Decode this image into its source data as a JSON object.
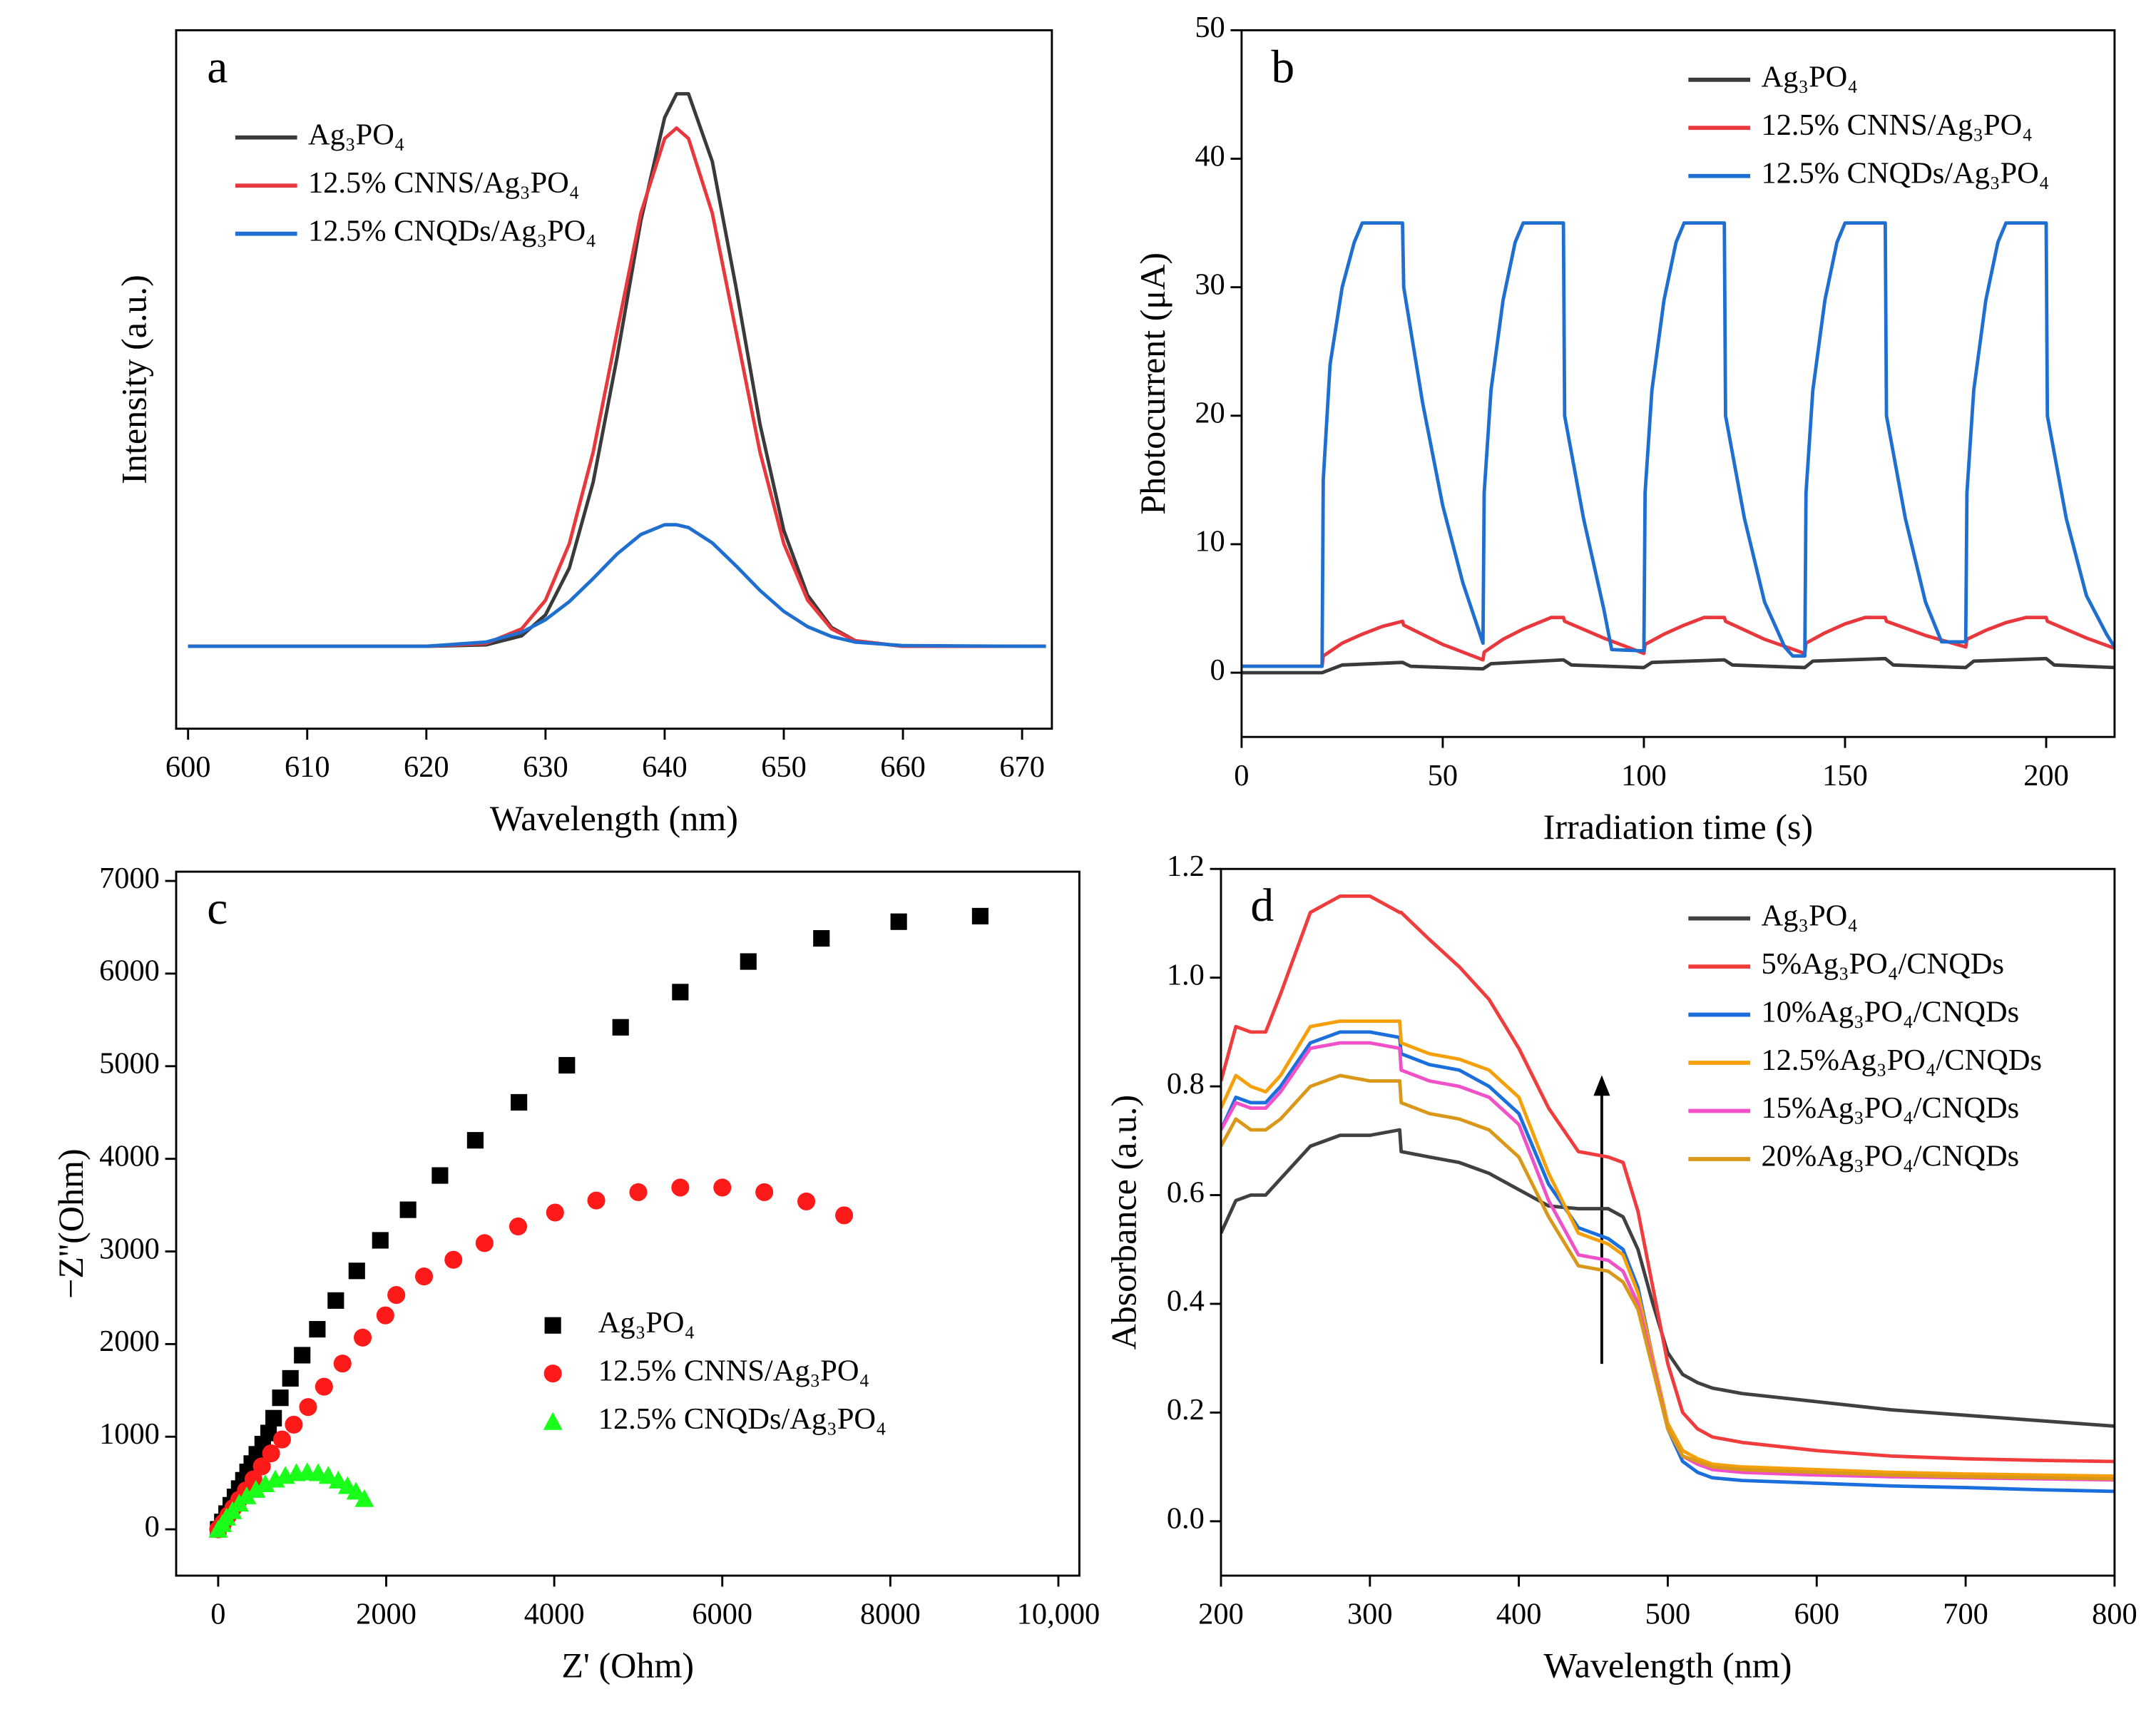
{
  "chart_data": [
    {
      "type": "line",
      "label": "a",
      "xlabel": "Wavelength (nm)",
      "ylabel": "Intensity (a.u.)",
      "xlim": [
        599,
        672.5
      ],
      "xticks": [
        600,
        610,
        620,
        630,
        640,
        650,
        660,
        670
      ],
      "ylim": [
        0,
        1
      ],
      "legend": "upper left",
      "x": [
        600,
        610,
        620,
        625,
        628,
        630,
        632,
        634,
        636,
        638,
        640,
        641,
        642,
        644,
        646,
        648,
        650,
        652,
        654,
        656,
        660,
        670,
        672
      ],
      "series": [
        {
          "name": "Ag₃PO₄",
          "color": "#3a3a3a",
          "values": [
            0.118,
            0.118,
            0.118,
            0.12,
            0.133,
            0.163,
            0.23,
            0.353,
            0.531,
            0.727,
            0.875,
            0.909,
            0.909,
            0.812,
            0.631,
            0.436,
            0.284,
            0.191,
            0.145,
            0.126,
            0.118,
            0.118,
            0.118
          ]
        },
        {
          "name": "12.5% CNNS/Ag₃PO₄",
          "color": "#e8383d",
          "values": [
            0.118,
            0.118,
            0.118,
            0.122,
            0.143,
            0.184,
            0.265,
            0.396,
            0.568,
            0.738,
            0.845,
            0.86,
            0.845,
            0.738,
            0.568,
            0.396,
            0.265,
            0.184,
            0.143,
            0.126,
            0.118,
            0.118,
            0.118
          ]
        },
        {
          "name": "12.5% CNQDs/Ag₃PO₄",
          "color": "#1f6fd0",
          "values": [
            0.118,
            0.118,
            0.118,
            0.124,
            0.138,
            0.156,
            0.182,
            0.215,
            0.25,
            0.278,
            0.292,
            0.292,
            0.288,
            0.266,
            0.233,
            0.198,
            0.168,
            0.146,
            0.132,
            0.124,
            0.119,
            0.118,
            0.118
          ]
        }
      ]
    },
    {
      "type": "line",
      "label": "b",
      "xlabel": "Irradiation time (s)",
      "ylabel": "Photocurrent (μA)",
      "xlim": [
        0,
        217
      ],
      "xticks": [
        0,
        50,
        100,
        150,
        200
      ],
      "ylim": [
        -5,
        50
      ],
      "yticks": [
        0,
        10,
        20,
        30,
        40,
        50
      ],
      "legend": "upper right",
      "series": [
        {
          "name": "Ag₃PO₄",
          "color": "#3a3a3a",
          "x": [
            0,
            20,
            25,
            40,
            42,
            60,
            62,
            80,
            82,
            100,
            102,
            120,
            122,
            140,
            142,
            160,
            162,
            180,
            182,
            200,
            202,
            217
          ],
          "values": [
            0,
            0,
            0.6,
            0.8,
            0.5,
            0.3,
            0.7,
            1.0,
            0.6,
            0.4,
            0.8,
            1.0,
            0.6,
            0.4,
            0.9,
            1.1,
            0.6,
            0.4,
            0.9,
            1.1,
            0.6,
            0.4
          ]
        },
        {
          "name": "12.5% CNNS/Ag₃PO₄",
          "color": "#e8383d",
          "x": [
            0,
            20,
            20.3,
            25,
            30,
            35,
            40,
            40.3,
            50,
            60,
            60.3,
            65,
            70,
            77,
            80,
            80.3,
            90,
            100,
            100.3,
            105,
            110,
            115,
            120,
            120.3,
            130,
            140,
            140.3,
            145,
            150,
            155,
            160,
            160.3,
            170,
            180,
            180.3,
            185,
            190,
            195,
            200,
            200.3,
            210,
            217
          ],
          "values": [
            0.5,
            0.5,
            1.3,
            2.3,
            3.0,
            3.6,
            4.0,
            3.7,
            2.2,
            1.0,
            1.6,
            2.6,
            3.4,
            4.3,
            4.3,
            4.0,
            2.7,
            1.5,
            2.2,
            3.0,
            3.7,
            4.3,
            4.3,
            4.0,
            2.6,
            1.5,
            2.3,
            3.1,
            3.8,
            4.3,
            4.3,
            4.0,
            2.9,
            2.0,
            2.6,
            3.3,
            3.9,
            4.3,
            4.3,
            4.0,
            2.7,
            1.9
          ]
        },
        {
          "name": "12.5% CNQDs/Ag₃PO₄",
          "color": "#1f6fd0",
          "x": [
            0,
            20,
            20.3,
            22,
            25,
            28,
            30,
            40,
            40.3,
            45,
            50,
            55,
            60,
            60.3,
            62,
            65,
            68,
            70,
            80,
            80.3,
            85,
            90,
            92,
            100,
            100.3,
            102,
            105,
            108,
            110,
            120,
            120.3,
            125,
            130,
            135,
            137,
            140,
            140.3,
            142,
            145,
            148,
            150,
            160,
            160.3,
            165,
            170,
            174,
            176,
            180,
            180.3,
            182,
            185,
            188,
            190,
            200,
            200.3,
            205,
            210,
            215,
            217
          ],
          "values": [
            0.5,
            0.5,
            15,
            24,
            30,
            33.5,
            35,
            35,
            30,
            21,
            13,
            7,
            2.3,
            14,
            22,
            29,
            33.5,
            35,
            35,
            20,
            12,
            5,
            1.8,
            1.7,
            14,
            22,
            29,
            33.5,
            35,
            35,
            20,
            12,
            5.5,
            2,
            1.3,
            1.3,
            14,
            22,
            29,
            33.5,
            35,
            35,
            20,
            12,
            5.5,
            2.4,
            2.4,
            2.4,
            14,
            22,
            29,
            33.5,
            35,
            35,
            20,
            12,
            6,
            3,
            2
          ]
        }
      ]
    },
    {
      "type": "scatter",
      "label": "c",
      "xlabel": "Z' (Ohm)",
      "ylabel": "−Z''(Ohm)",
      "xlim": [
        -500,
        10250
      ],
      "xticks": [
        0,
        2000,
        4000,
        6000,
        8000,
        {
          "value": 10000,
          "label": "10,000"
        }
      ],
      "ylim": [
        -500,
        7100
      ],
      "yticks": [
        0,
        1000,
        2000,
        3000,
        4000,
        5000,
        6000,
        7000
      ],
      "legend": "center",
      "series": [
        {
          "name": "Ag₃PO₄",
          "color": "#000000",
          "marker": "square",
          "x": [
            0,
            50,
            100,
            150,
            200,
            250,
            300,
            350,
            400,
            460,
            530,
            600,
            660,
            740,
            860,
            1000,
            1180,
            1400,
            1650,
            1930,
            2260,
            2640,
            3060,
            3580,
            4150,
            4790,
            5500,
            6310,
            7180,
            8100,
            9070
          ],
          "values": [
            0,
            80,
            170,
            260,
            350,
            440,
            530,
            620,
            710,
            810,
            920,
            1040,
            1200,
            1420,
            1630,
            1880,
            2160,
            2470,
            2790,
            3120,
            3450,
            3820,
            4200,
            4610,
            5010,
            5420,
            5800,
            6130,
            6380,
            6560,
            6620
          ]
        },
        {
          "name": "12.5% CNNS/Ag₃PO₄",
          "color": "#ff1a1a",
          "marker": "circle",
          "x": [
            0,
            60,
            120,
            180,
            250,
            330,
            420,
            520,
            630,
            760,
            900,
            1070,
            1260,
            1480,
            1720,
            1990,
            2120,
            2450,
            2800,
            3170,
            3570,
            4010,
            4500,
            5000,
            5500,
            6000,
            6500,
            7000,
            7450
          ],
          "values": [
            0,
            70,
            150,
            230,
            320,
            420,
            540,
            680,
            820,
            970,
            1130,
            1320,
            1540,
            1790,
            2070,
            2310,
            2530,
            2730,
            2910,
            3090,
            3270,
            3420,
            3550,
            3640,
            3690,
            3690,
            3640,
            3540,
            3390
          ]
        },
        {
          "name": "12.5% CNQDs/Ag₃PO₄",
          "color": "#1aff1a",
          "marker": "triangle",
          "x": [
            0,
            50,
            100,
            170,
            250,
            340,
            450,
            560,
            680,
            800,
            930,
            1060,
            1190,
            1310,
            1430,
            1540,
            1640,
            1740
          ],
          "values": [
            0,
            60,
            130,
            200,
            280,
            360,
            430,
            490,
            540,
            580,
            610,
            620,
            610,
            580,
            530,
            470,
            410,
            330
          ]
        }
      ]
    },
    {
      "type": "line",
      "label": "d",
      "xlabel": "Wavelength (nm)",
      "ylabel": "Absorbance (a.u.)",
      "xlim": [
        200,
        800
      ],
      "xticks": [
        200,
        300,
        400,
        500,
        600,
        700,
        800
      ],
      "ylim": [
        -0.1,
        1.2
      ],
      "yticks": [
        {
          "value": 0,
          "label": "0.0"
        },
        0.2,
        0.4,
        0.6,
        0.8,
        {
          "value": 1,
          "label": "1.0"
        },
        1.2
      ],
      "legend": "upper right",
      "x": [
        200,
        210,
        220,
        230,
        240,
        260,
        280,
        300,
        320,
        321,
        340,
        360,
        380,
        400,
        420,
        440,
        460,
        470,
        480,
        490,
        500,
        510,
        520,
        530,
        550,
        600,
        650,
        700,
        750,
        800
      ],
      "series": [
        {
          "name": "Ag₃PO₄",
          "color": "#404040",
          "values": [
            0.53,
            0.59,
            0.6,
            0.6,
            0.63,
            0.69,
            0.71,
            0.71,
            0.72,
            0.68,
            0.67,
            0.66,
            0.64,
            0.61,
            0.58,
            0.575,
            0.575,
            0.56,
            0.5,
            0.4,
            0.31,
            0.27,
            0.255,
            0.245,
            0.235,
            0.22,
            0.205,
            0.195,
            0.185,
            0.175
          ]
        },
        {
          "name": "5%Ag₃PO₄/CNQDs",
          "color": "#f03c3c",
          "values": [
            0.81,
            0.91,
            0.9,
            0.9,
            0.97,
            1.12,
            1.15,
            1.15,
            1.12,
            1.12,
            1.07,
            1.02,
            0.96,
            0.87,
            0.76,
            0.68,
            0.67,
            0.66,
            0.57,
            0.43,
            0.29,
            0.2,
            0.17,
            0.155,
            0.145,
            0.13,
            0.12,
            0.115,
            0.112,
            0.11
          ]
        },
        {
          "name": "10%Ag₃PO₄/CNQDs",
          "color": "#1a6fdc",
          "values": [
            0.72,
            0.78,
            0.77,
            0.77,
            0.8,
            0.88,
            0.9,
            0.9,
            0.89,
            0.86,
            0.84,
            0.83,
            0.8,
            0.75,
            0.62,
            0.54,
            0.52,
            0.5,
            0.43,
            0.3,
            0.17,
            0.11,
            0.09,
            0.08,
            0.075,
            0.07,
            0.065,
            0.062,
            0.058,
            0.055
          ]
        },
        {
          "name": "12.5%Ag₃PO₄/CNQDs",
          "color": "#f5a00a",
          "values": [
            0.76,
            0.82,
            0.8,
            0.79,
            0.82,
            0.91,
            0.92,
            0.92,
            0.92,
            0.88,
            0.86,
            0.85,
            0.83,
            0.78,
            0.64,
            0.53,
            0.51,
            0.49,
            0.42,
            0.3,
            0.18,
            0.13,
            0.115,
            0.105,
            0.1,
            0.095,
            0.09,
            0.087,
            0.085,
            0.083
          ]
        },
        {
          "name": "15%Ag₃PO₄/CNQDs",
          "color": "#f050c8",
          "values": [
            0.72,
            0.77,
            0.76,
            0.76,
            0.79,
            0.87,
            0.88,
            0.88,
            0.87,
            0.83,
            0.81,
            0.8,
            0.78,
            0.73,
            0.59,
            0.49,
            0.48,
            0.46,
            0.4,
            0.29,
            0.17,
            0.12,
            0.105,
            0.095,
            0.09,
            0.085,
            0.082,
            0.08,
            0.078,
            0.076
          ]
        },
        {
          "name": "20%Ag₃PO₄/CNQDs",
          "color": "#d9981a",
          "values": [
            0.69,
            0.74,
            0.72,
            0.72,
            0.74,
            0.8,
            0.82,
            0.81,
            0.81,
            0.77,
            0.75,
            0.74,
            0.72,
            0.67,
            0.56,
            0.47,
            0.46,
            0.44,
            0.39,
            0.28,
            0.17,
            0.12,
            0.11,
            0.1,
            0.095,
            0.09,
            0.085,
            0.082,
            0.08,
            0.078
          ]
        }
      ]
    }
  ]
}
